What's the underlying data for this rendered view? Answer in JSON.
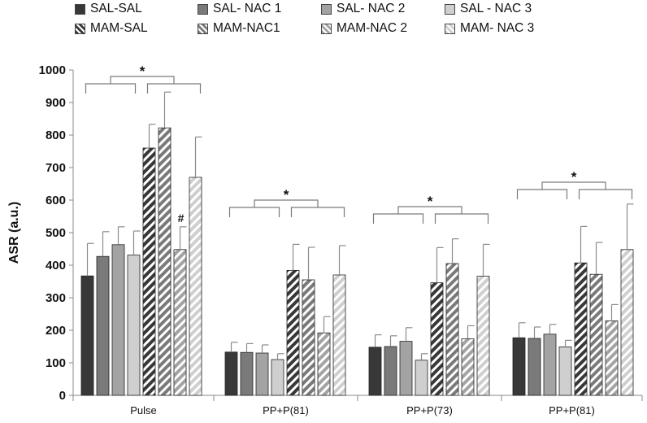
{
  "chart_data": {
    "type": "bar",
    "ylabel": "ASR (a.u.)",
    "xlabel": "",
    "ylim": [
      0,
      1000
    ],
    "yticks": [
      0,
      100,
      200,
      300,
      400,
      500,
      600,
      700,
      800,
      900,
      1000
    ],
    "grid": false,
    "legend_position": "top",
    "categories": [
      "Pulse",
      "PP+P(81)",
      "PP+P(73)",
      "PP+P(81)"
    ],
    "series": [
      {
        "name": "SAL-SAL",
        "color": "#383838",
        "pattern": "solid",
        "values": [
          367,
          133,
          148,
          177
        ],
        "errors": [
          100,
          30,
          38,
          46
        ]
      },
      {
        "name": "SAL- NAC 1",
        "color": "#7a7a7a",
        "pattern": "solid",
        "values": [
          427,
          132,
          150,
          175
        ],
        "errors": [
          76,
          27,
          33,
          35
        ]
      },
      {
        "name": "SAL- NAC 2",
        "color": "#a3a3a3",
        "pattern": "solid",
        "values": [
          463,
          130,
          166,
          188
        ],
        "errors": [
          55,
          25,
          42,
          30
        ]
      },
      {
        "name": "SAL - NAC 3",
        "color": "#cfcfcf",
        "pattern": "solid",
        "values": [
          431,
          110,
          108,
          149
        ],
        "errors": [
          74,
          18,
          20,
          20
        ]
      },
      {
        "name": "MAM-SAL",
        "color": "#383838",
        "pattern": "striped",
        "values": [
          760,
          384,
          346,
          407
        ],
        "errors": [
          73,
          80,
          108,
          112
        ]
      },
      {
        "name": "MAM-NAC1",
        "color": "#7a7a7a",
        "pattern": "striped",
        "values": [
          822,
          355,
          405,
          372
        ],
        "errors": [
          110,
          100,
          76,
          98
        ]
      },
      {
        "name": "MAM-NAC 2",
        "color": "#a3a3a3",
        "pattern": "striped",
        "values": [
          448,
          192,
          174,
          229
        ],
        "errors": [
          70,
          50,
          40,
          50
        ]
      },
      {
        "name": "MAM- NAC 3",
        "color": "#cfcfcf",
        "pattern": "striped",
        "values": [
          670,
          370,
          366,
          448
        ],
        "errors": [
          124,
          90,
          98,
          140
        ]
      }
    ],
    "annotations": [
      {
        "text": "*",
        "category_index": 0
      },
      {
        "text": "*",
        "category_index": 1
      },
      {
        "text": "*",
        "category_index": 2
      },
      {
        "text": "*",
        "category_index": 3
      },
      {
        "text": "#",
        "category_index": 0,
        "series_index": 6
      }
    ]
  }
}
